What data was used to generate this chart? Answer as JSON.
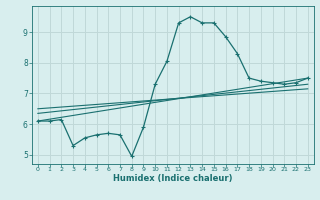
{
  "title": "",
  "xlabel": "Humidex (Indice chaleur)",
  "bg_color": "#d8eeee",
  "grid_color": "#c0d8d8",
  "line_color": "#1a7070",
  "xlim": [
    -0.5,
    23.5
  ],
  "ylim": [
    4.7,
    9.85
  ],
  "xticks": [
    0,
    1,
    2,
    3,
    4,
    5,
    6,
    7,
    8,
    9,
    10,
    11,
    12,
    13,
    14,
    15,
    16,
    17,
    18,
    19,
    20,
    21,
    22,
    23
  ],
  "yticks": [
    5,
    6,
    7,
    8,
    9
  ],
  "zigzag_x": [
    0,
    1,
    2,
    3,
    4,
    5,
    6,
    7,
    8,
    9,
    10,
    11,
    12,
    13,
    14,
    15,
    16,
    17,
    18,
    19,
    20,
    21,
    22,
    23
  ],
  "zigzag_y": [
    6.1,
    6.1,
    6.15,
    5.3,
    5.55,
    5.65,
    5.7,
    5.65,
    4.95,
    5.9,
    7.3,
    8.05,
    9.3,
    9.5,
    9.3,
    9.3,
    8.85,
    8.3,
    7.5,
    7.4,
    7.35,
    7.3,
    7.35,
    7.5
  ],
  "line1_x": [
    0,
    23
  ],
  "line1_y": [
    6.1,
    7.5
  ],
  "line2_x": [
    0,
    23
  ],
  "line2_y": [
    6.35,
    7.3
  ],
  "line3_x": [
    0,
    23
  ],
  "line3_y": [
    6.5,
    7.15
  ]
}
